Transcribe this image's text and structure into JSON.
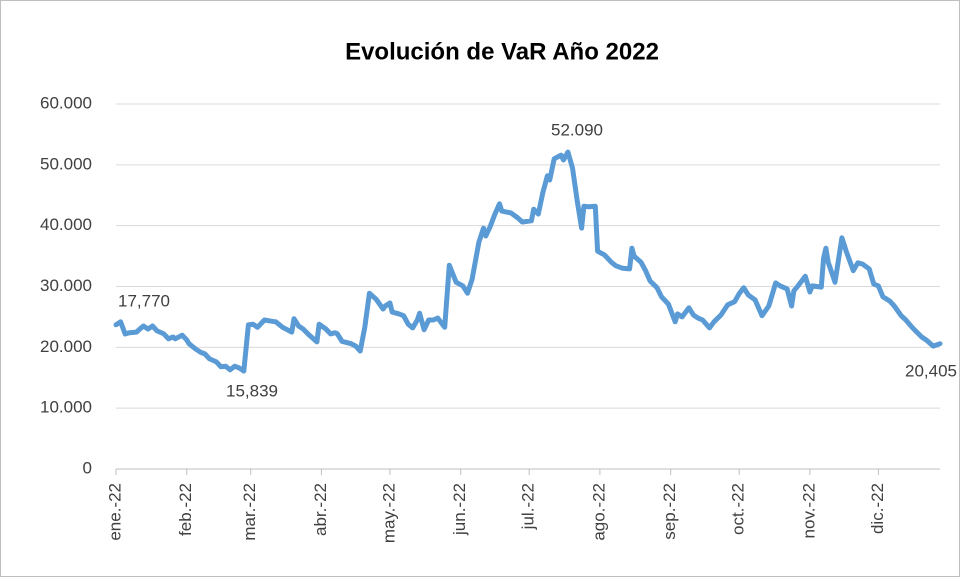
{
  "chart_data": {
    "type": "line",
    "title": "Evolución de VaR Año 2022",
    "color": "#5b9bd5",
    "grid": true,
    "annotations": [
      "17,770",
      "15,839",
      "52.090",
      "20,405"
    ],
    "xlim": [
      0,
      361
    ],
    "xticks": [
      {
        "value": 0,
        "label": "ene.-22"
      },
      {
        "value": 31,
        "label": "feb.-22"
      },
      {
        "value": 59,
        "label": "mar.-22"
      },
      {
        "value": 90,
        "label": "abr.-22"
      },
      {
        "value": 120,
        "label": "may.-22"
      },
      {
        "value": 151,
        "label": "jun.-22"
      },
      {
        "value": 181,
        "label": "jul.-22"
      },
      {
        "value": 212,
        "label": "ago.-22"
      },
      {
        "value": 243,
        "label": "sep.-22"
      },
      {
        "value": 273,
        "label": "oct.-22"
      },
      {
        "value": 304,
        "label": "nov.-22"
      },
      {
        "value": 334,
        "label": "dic.-22"
      }
    ],
    "ylim": [
      0,
      60000
    ],
    "yticks": [
      0,
      {
        "value": 10000,
        "label": "10.000"
      },
      {
        "value": 20000,
        "label": "20.000"
      },
      {
        "value": 30000,
        "label": "30.000"
      },
      {
        "value": 40000,
        "label": "40.000"
      },
      {
        "value": 50000,
        "label": "50.000"
      },
      {
        "value": 60000,
        "label": "60.000"
      }
    ],
    "x": [
      0,
      2,
      4,
      6,
      9,
      11,
      12,
      14,
      16,
      18,
      21,
      23,
      25,
      26,
      29,
      31,
      32,
      35,
      37,
      39,
      41,
      44,
      46,
      48,
      50,
      52,
      54,
      56,
      58,
      60,
      62,
      65,
      68,
      70,
      73,
      75,
      77,
      78,
      80,
      82,
      85,
      88,
      89,
      92,
      94,
      96,
      97,
      99,
      103,
      105,
      107,
      109,
      111,
      114,
      117,
      118,
      120,
      121,
      124,
      126,
      128,
      130,
      132,
      133,
      135,
      137,
      139,
      141,
      144,
      146,
      149,
      152,
      154,
      156,
      159,
      161,
      162,
      164,
      166,
      168,
      169,
      173,
      176,
      178,
      182,
      183,
      185,
      187,
      189,
      190,
      192,
      195,
      196,
      198,
      200,
      202,
      204,
      205,
      207,
      210,
      211,
      214,
      217,
      219,
      222,
      225,
      226,
      227,
      230,
      232,
      234,
      237,
      239,
      242,
      245,
      246,
      248,
      251,
      253,
      255,
      257,
      260,
      262,
      265,
      268,
      271,
      273,
      275,
      277,
      280,
      283,
      286,
      289,
      291,
      294,
      296,
      297,
      299,
      302,
      304,
      305,
      309,
      310,
      311,
      312,
      315,
      318,
      320,
      323,
      325,
      327,
      330,
      332,
      334,
      336,
      339,
      341,
      344,
      346,
      349,
      353,
      355,
      358,
      361
    ],
    "values": [
      23700,
      24200,
      22200,
      22400,
      22500,
      23200,
      23500,
      23000,
      23500,
      22700,
      22200,
      21400,
      21700,
      21400,
      22000,
      21200,
      20600,
      19700,
      19200,
      18900,
      18100,
      17600,
      16800,
      16900,
      16300,
      16900,
      16600,
      16100,
      23700,
      23800,
      23300,
      24500,
      24300,
      24200,
      23300,
      22900,
      22500,
      24700,
      23500,
      23000,
      21900,
      20900,
      23800,
      23000,
      22200,
      22400,
      22200,
      21000,
      20600,
      20200,
      19400,
      23300,
      28900,
      27900,
      26300,
      26800,
      27300,
      25800,
      25500,
      25200,
      23800,
      23200,
      24500,
      25600,
      22900,
      24500,
      24500,
      24800,
      23300,
      33500,
      30700,
      30100,
      28900,
      31200,
      37300,
      39600,
      38300,
      39900,
      41900,
      43600,
      42400,
      42100,
      41300,
      40600,
      40800,
      42700,
      41900,
      45400,
      48200,
      47500,
      51000,
      51600,
      50800,
      52100,
      49500,
      44200,
      39600,
      43200,
      43100,
      43200,
      35800,
      35200,
      34000,
      33400,
      33000,
      32900,
      36300,
      35000,
      34000,
      32600,
      30900,
      29800,
      28300,
      27100,
      24200,
      25500,
      25000,
      26500,
      25300,
      24800,
      24500,
      23200,
      24200,
      25300,
      27000,
      27500,
      28800,
      29800,
      28600,
      27800,
      25200,
      26800,
      30600,
      30100,
      29600,
      26800,
      29300,
      30200,
      31700,
      29100,
      30100,
      29900,
      34700,
      36300,
      34000,
      30700,
      38000,
      35700,
      32600,
      33900,
      33700,
      32900,
      30400,
      30100,
      28300,
      27600,
      26800,
      25200,
      24500,
      23200,
      21700,
      21200,
      20200,
      20600
    ]
  }
}
